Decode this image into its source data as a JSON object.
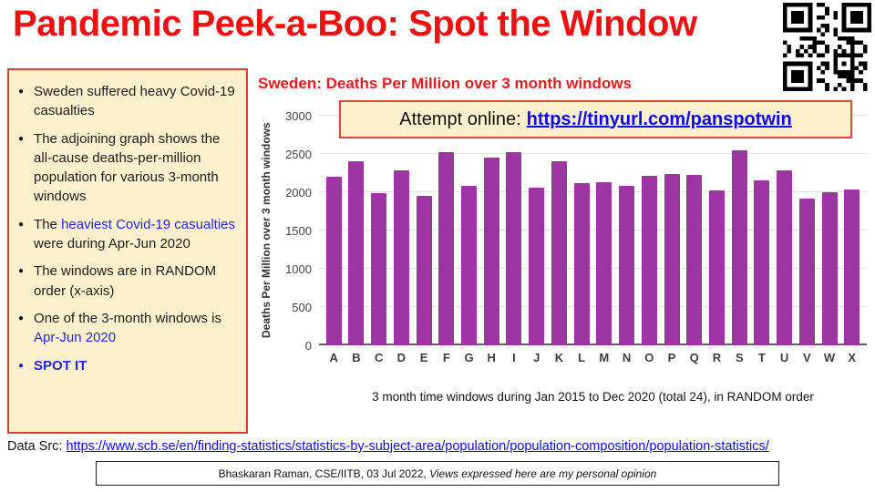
{
  "page_title": "Pandemic Peek-a-Boo: Spot the Window",
  "colors": {
    "title_red": "#ee1111",
    "chart_title_red": "#e01d20",
    "panel_bg": "#fcf0cd",
    "panel_border_red": "#e33b2e",
    "link_blue": "#0b0beb",
    "inline_blue": "#2626d8",
    "bar_purple": "#9c35a2"
  },
  "sidebar": {
    "bullets": [
      {
        "marker": "black",
        "segments": [
          {
            "text": "Sweden suffered heavy Covid-19 casualties"
          }
        ]
      },
      {
        "marker": "black",
        "segments": [
          {
            "text": "The adjoining graph shows the all-cause deaths-per-million population for various 3-month windows"
          }
        ]
      },
      {
        "marker": "black",
        "segments": [
          {
            "text": "The "
          },
          {
            "text": "heaviest Covid-19 casualties",
            "blue": true
          },
          {
            "text": " were during Apr-Jun 2020"
          }
        ]
      },
      {
        "marker": "black",
        "segments": [
          {
            "text": "The windows are in RANDOM order (x-axis)"
          }
        ]
      },
      {
        "marker": "black",
        "segments": [
          {
            "text": "One of the 3-month windows is "
          },
          {
            "text": "Apr-Jun 2020",
            "blue": true
          }
        ]
      },
      {
        "marker": "blue",
        "segments": [
          {
            "text": "SPOT IT",
            "blue": true,
            "bold": true
          }
        ]
      }
    ]
  },
  "overlay": {
    "label": "Attempt online:",
    "link_text": "https://tinyurl.com/panspotwin"
  },
  "chart_data": {
    "type": "bar",
    "title": "Sweden: Deaths Per Million over 3 month windows",
    "categories": [
      "A",
      "B",
      "C",
      "D",
      "E",
      "F",
      "G",
      "H",
      "I",
      "J",
      "K",
      "L",
      "M",
      "N",
      "O",
      "P",
      "Q",
      "R",
      "S",
      "T",
      "U",
      "V",
      "W",
      "X"
    ],
    "values": [
      2200,
      2400,
      1990,
      2290,
      1950,
      2520,
      2080,
      2450,
      2520,
      2060,
      2400,
      2120,
      2130,
      2080,
      2220,
      2240,
      2230,
      2020,
      2550,
      2150,
      2290,
      1920,
      2000,
      2030
    ],
    "ylabel": "Deaths Per Million over 3 month windows",
    "xcaption": "3 month time windows during Jan 2015 to Dec 2020 (total 24), in RANDOM order",
    "ylim": [
      0,
      3000
    ],
    "yticks": [
      0,
      500,
      1000,
      1500,
      2000,
      2500,
      3000
    ],
    "bar_color": "#9c35a2",
    "grid": true,
    "legend": "none"
  },
  "footer": {
    "data_src_label": "Data Src:",
    "data_src_url": "https://www.scb.se/en/finding-statistics/statistics-by-subject-area/population/population-composition/population-statistics/",
    "credit_prefix": "Bhaskaran Raman, CSE/IITB, 03 Jul 2022,",
    "credit_italic": "Views expressed here are my personal opinion"
  }
}
